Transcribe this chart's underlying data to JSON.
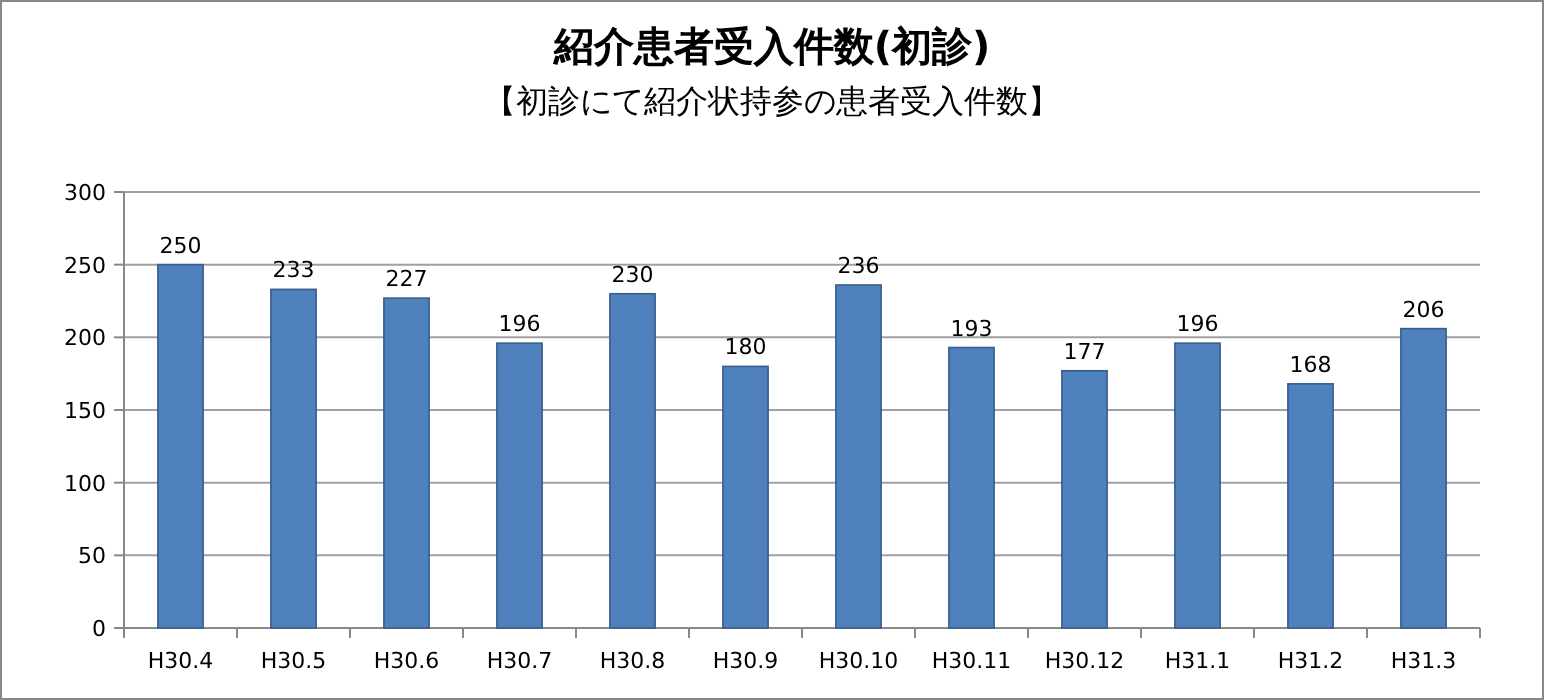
{
  "chart_data": {
    "type": "bar",
    "title": "紹介患者受入件数(初診)",
    "subtitle": "【初診にて紹介状持参の患者受入件数】",
    "categories": [
      "H30.4",
      "H30.5",
      "H30.6",
      "H30.7",
      "H30.8",
      "H30.9",
      "H30.10",
      "H30.11",
      "H30.12",
      "H31.1",
      "H31.2",
      "H31.3"
    ],
    "values": [
      250,
      233,
      227,
      196,
      230,
      180,
      236,
      193,
      177,
      196,
      168,
      206
    ],
    "color": "#4f81bd",
    "ylim": [
      0,
      300
    ],
    "yticks": [
      0,
      50,
      100,
      150,
      200,
      250,
      300
    ],
    "grid": "y",
    "data_labels": true,
    "legend": false
  }
}
